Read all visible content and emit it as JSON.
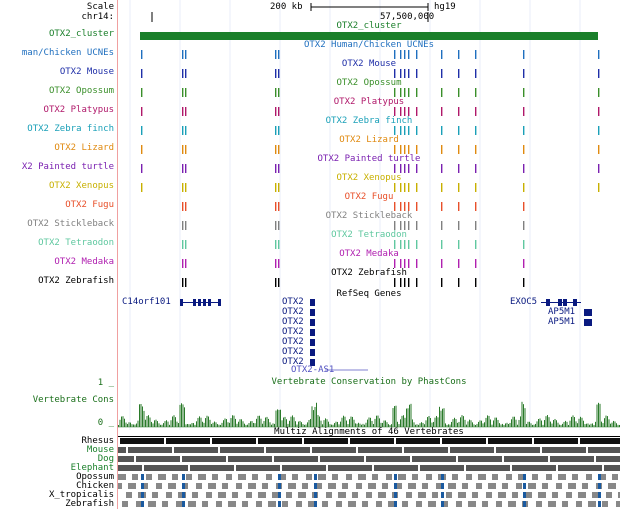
{
  "header": {
    "scale_label": "Scale",
    "chrom_label": "chr14:",
    "scale_text": "200 kb",
    "assembly": "hg19",
    "position": "57,500,000"
  },
  "tracks": [
    {
      "label": "OTX2_cluster",
      "title": "OTX2_cluster",
      "color": "#1a7f2a"
    },
    {
      "label": "man/Chicken UCNEs",
      "title": "OTX2 Human/Chicken UCNEs",
      "color": "#1f6fbf"
    },
    {
      "label": "OTX2 Mouse",
      "title": "OTX2 Mouse",
      "color": "#1f2fa8"
    },
    {
      "label": "OTX2 Opossum",
      "title": "OTX2 Opossum",
      "color": "#3a8f2a"
    },
    {
      "label": "OTX2 Platypus",
      "title": "OTX2 Platypus",
      "color": "#b0186a"
    },
    {
      "label": "OTX2 Zebra finch",
      "title": "OTX2 Zebra finch",
      "color": "#1aa0b8"
    },
    {
      "label": "OTX2 Lizard",
      "title": "OTX2 Lizard",
      "color": "#e08a10"
    },
    {
      "label": "X2 Painted turtle",
      "title": "OTX2 Painted turtle",
      "color": "#7a20b0"
    },
    {
      "label": "OTX2 Xenopus",
      "title": "OTX2 Xenopus",
      "color": "#c8b000"
    },
    {
      "label": "OTX2 Fugu",
      "title": "OTX2 Fugu",
      "color": "#e8502a"
    },
    {
      "label": "OTX2 Stickleback",
      "title": "OTX2 Stickleback",
      "color": "#808080"
    },
    {
      "label": "OTX2 Tetraodon",
      "title": "OTX2 Tetraodon",
      "color": "#60c8a0"
    },
    {
      "label": "OTX2 Medaka",
      "title": "OTX2 Medaka",
      "color": "#b020b0"
    },
    {
      "label": "OTX2 Zebrafish",
      "title": "OTX2 Zebrafish",
      "color": "#000000"
    }
  ],
  "refseq": {
    "title": "RefSeq Genes",
    "color": "#0a1a80",
    "genes_left": "C14orf101",
    "genes_center": [
      "OTX2",
      "OTX2",
      "OTX2",
      "OTX2",
      "OTX2",
      "OTX2",
      "OTX2"
    ],
    "antisense": "OTX2-AS1",
    "genes_right": [
      "EXOC5",
      "AP5M1",
      "AP5M1"
    ]
  },
  "conservation": {
    "title": "Vertebrate Conservation by PhastCons",
    "label": "Vertebrate Cons",
    "ymax_label": "1 _",
    "ymin_label": "0 _",
    "color": "#2a7a2a"
  },
  "multiz": {
    "title": "Multiz Alignments of 46 Vertebrates",
    "species": [
      {
        "name": "Rhesus",
        "color": "#000000"
      },
      {
        "name": "Mouse",
        "color": "#1a7f2a"
      },
      {
        "name": "Dog",
        "color": "#1a7f2a"
      },
      {
        "name": "Elephant",
        "color": "#1a7f2a"
      },
      {
        "name": "Opossum",
        "color": "#000000"
      },
      {
        "name": "Chicken",
        "color": "#000000"
      },
      {
        "name": "X_tropicalis",
        "color": "#000000"
      },
      {
        "name": "Zebrafish",
        "color": "#000000"
      }
    ]
  }
}
